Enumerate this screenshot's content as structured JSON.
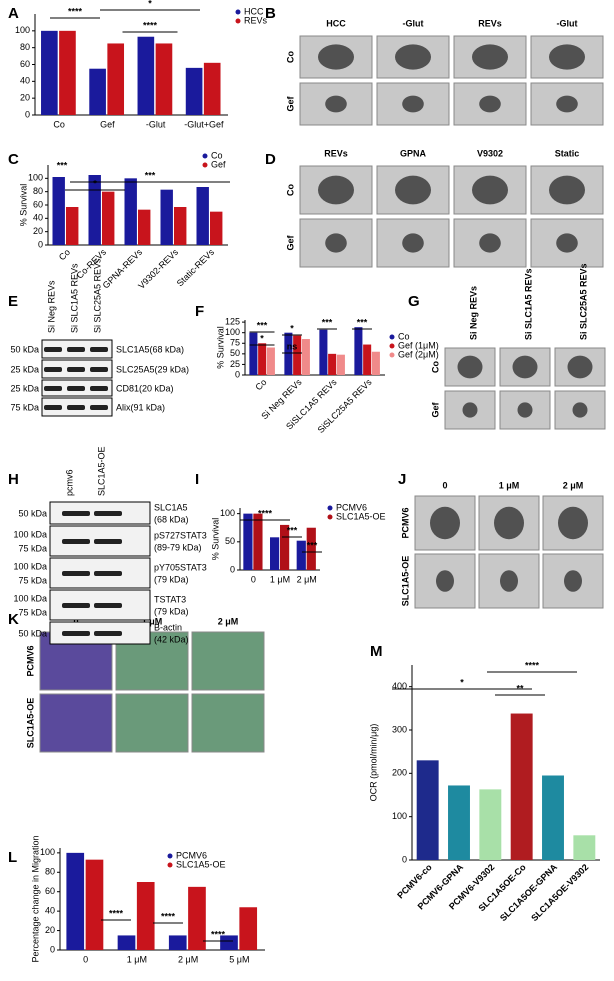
{
  "panel_letters": [
    "A",
    "B",
    "C",
    "D",
    "E",
    "F",
    "G",
    "H",
    "I",
    "J",
    "K",
    "L",
    "M"
  ],
  "chart_data": [
    {
      "type": "bar",
      "categories": [
        "Co",
        "Gef",
        "-Glut",
        "-Glut+Gef"
      ],
      "series": [
        {
          "name": "HCC",
          "color": "#1a1a9c",
          "values": [
            100,
            55,
            93,
            56
          ]
        },
        {
          "name": "REVs",
          "color": "#c8141c",
          "values": [
            100,
            85,
            85,
            62
          ]
        }
      ],
      "ylim": [
        0,
        120
      ],
      "yticks": [
        0,
        20,
        40,
        60,
        80,
        100
      ],
      "annotations": [
        "****",
        "*",
        "****"
      ]
    },
    {
      "type": "bar",
      "y_label": "% Survival",
      "categories": [
        "Co",
        "Co-REVs",
        "GPNA-REVs",
        "V9302-REVs",
        "Static-REVs"
      ],
      "series": [
        {
          "name": "Co",
          "color": "#1a1a9c",
          "values": [
            102,
            105,
            100,
            83,
            87
          ]
        },
        {
          "name": "Gef",
          "color": "#c8141c",
          "values": [
            57,
            80,
            53,
            57,
            50
          ]
        }
      ],
      "ylim": [
        0,
        120
      ],
      "yticks": [
        0,
        20,
        40,
        60,
        80,
        100
      ],
      "annotations": [
        "***",
        "*",
        "***"
      ]
    },
    {
      "type": "bar",
      "y_label": "% Survival",
      "categories": [
        "Co",
        "Si Neg REVs",
        "SiSLC1A5 REVs",
        "SiSLC25A5 REVs"
      ],
      "series": [
        {
          "name": "Co",
          "color": "#1a1a9c",
          "values": [
            100,
            100,
            107,
            113
          ]
        },
        {
          "name": "Gef (1μM)",
          "color": "#c8141c",
          "values": [
            75,
            93,
            50,
            72
          ]
        },
        {
          "name": "Gef (2μM)",
          "color": "#f08a8a",
          "values": [
            65,
            85,
            48,
            55
          ]
        }
      ],
      "ylim": [
        0,
        130
      ],
      "yticks": [
        0,
        25,
        50,
        75,
        100,
        125
      ],
      "annotations": [
        "***",
        "*",
        "ns",
        "*",
        "***",
        "***"
      ]
    },
    {
      "type": "bar",
      "y_label": "% Survival",
      "categories": [
        "0",
        "1 μM",
        "2 μM"
      ],
      "series": [
        {
          "name": "PCMV6",
          "color": "#1a1a9c",
          "values": [
            100,
            58,
            52
          ]
        },
        {
          "name": "SLC1A5-OE",
          "color": "#b01018",
          "values": [
            100,
            80,
            75
          ]
        }
      ],
      "ylim": [
        0,
        110
      ],
      "yticks": [
        0,
        50,
        100
      ],
      "annotations": [
        "****",
        "***",
        "***"
      ]
    },
    {
      "type": "bar",
      "y_label": "Percentage change in Migration",
      "categories": [
        "0",
        "1 μM",
        "2 μM",
        "5 μM"
      ],
      "series": [
        {
          "name": "PCMV6",
          "color": "#1a1a9c",
          "values": [
            100,
            15,
            15,
            15
          ]
        },
        {
          "name": "SLC1A5-OE",
          "color": "#c8141c",
          "values": [
            93,
            70,
            65,
            44
          ]
        }
      ],
      "ylim": [
        0,
        105
      ],
      "yticks": [
        0,
        20,
        40,
        60,
        80,
        100
      ],
      "annotations": [
        "****",
        "****",
        "****"
      ]
    },
    {
      "type": "bar",
      "y_label": "OCR (pmol/min/μg)",
      "categories": [
        "PCMV6-co",
        "PCMV6-GPNA",
        "PCMV6-V9302",
        "SLC1A5OE-Co",
        "SLC1A5OE-GPNA",
        "SLC1A5OE-V9302"
      ],
      "values": [
        230,
        172,
        163,
        338,
        195,
        57
      ],
      "colors": [
        "#1e2a8c",
        "#1e8aa0",
        "#a8e0a8",
        "#b01c20",
        "#1e8aa0",
        "#a8e0a8"
      ],
      "ylim": [
        0,
        450
      ],
      "yticks": [
        0,
        100,
        200,
        300,
        400
      ],
      "annotations": [
        "*",
        "**",
        "****"
      ]
    }
  ],
  "image_panels": [
    {
      "columns": [
        "HCC",
        "-Glut",
        "REVs",
        "-Glut"
      ],
      "column_colors": [
        "#000000",
        "#000000",
        "#c00000",
        "#c00000"
      ],
      "rows": [
        "Co",
        "Gef"
      ]
    },
    {
      "columns": [
        "REVs",
        "GPNA",
        "V9302",
        "Static"
      ],
      "column_colors": [
        "#c00000",
        "#000000",
        "#000000",
        "#000000"
      ],
      "rows": [
        "Co",
        "Gef"
      ]
    },
    {
      "columns": [
        "Si Neg REVs",
        "Si SLC1A5 REVs",
        "Si SLC25A5 REVs"
      ],
      "column_colors": [
        "#000000",
        "#000000",
        "#000000"
      ],
      "rows": [
        "Co",
        "Gef"
      ]
    },
    {
      "columns": [
        "0",
        "1 μM",
        "2 μM"
      ],
      "column_colors": [
        "#000000",
        "#000000",
        "#000000"
      ],
      "rows": [
        "PCMV6",
        "SLC1A5-OE"
      ]
    },
    {
      "columns": [
        "0",
        "1 μM",
        "2 μM"
      ],
      "column_colors": [
        "#000000",
        "#000000",
        "#000000"
      ],
      "rows": [
        "PCMV6",
        "SLC1A5-OE"
      ]
    }
  ],
  "blots": [
    {
      "lanes": [
        "Si Neg REVs",
        "Si SLC1A5 REVs",
        "Si SLC25A5 REVs"
      ],
      "bands": [
        {
          "label": [
            "SLC1A5(68 kDa)"
          ],
          "markers": [
            "50 kDa"
          ]
        },
        {
          "label": [
            "SLC25A5(29 kDa)"
          ],
          "markers": [
            "25 kDa"
          ]
        },
        {
          "label": [
            "CD81(20 kDa)"
          ],
          "markers": [
            "25 kDa"
          ]
        },
        {
          "label": [
            "Alix(91 kDa)"
          ],
          "markers": [
            "75 kDa"
          ]
        }
      ]
    },
    {
      "lanes": [
        "pcmv6",
        "SLC1A5-OE"
      ],
      "bands": [
        {
          "label": [
            "SLC1A5",
            "(68 kDa)"
          ],
          "markers": [
            "50 kDa"
          ]
        },
        {
          "label": [
            "pS727STAT3",
            "(89-79 kDa)"
          ],
          "markers": [
            "100 kDa",
            "75 kDa"
          ]
        },
        {
          "label": [
            "pY705STAT3",
            "(79 kDa)"
          ],
          "markers": [
            "100 kDa",
            "75 kDa"
          ]
        },
        {
          "label": [
            "TSTAT3",
            "(79 kDa)"
          ],
          "markers": [
            "100 kDa",
            "75 kDa"
          ]
        },
        {
          "label": [
            "B-actin",
            "(42 kDa)"
          ],
          "markers": [
            "50 kDa"
          ]
        }
      ]
    }
  ]
}
